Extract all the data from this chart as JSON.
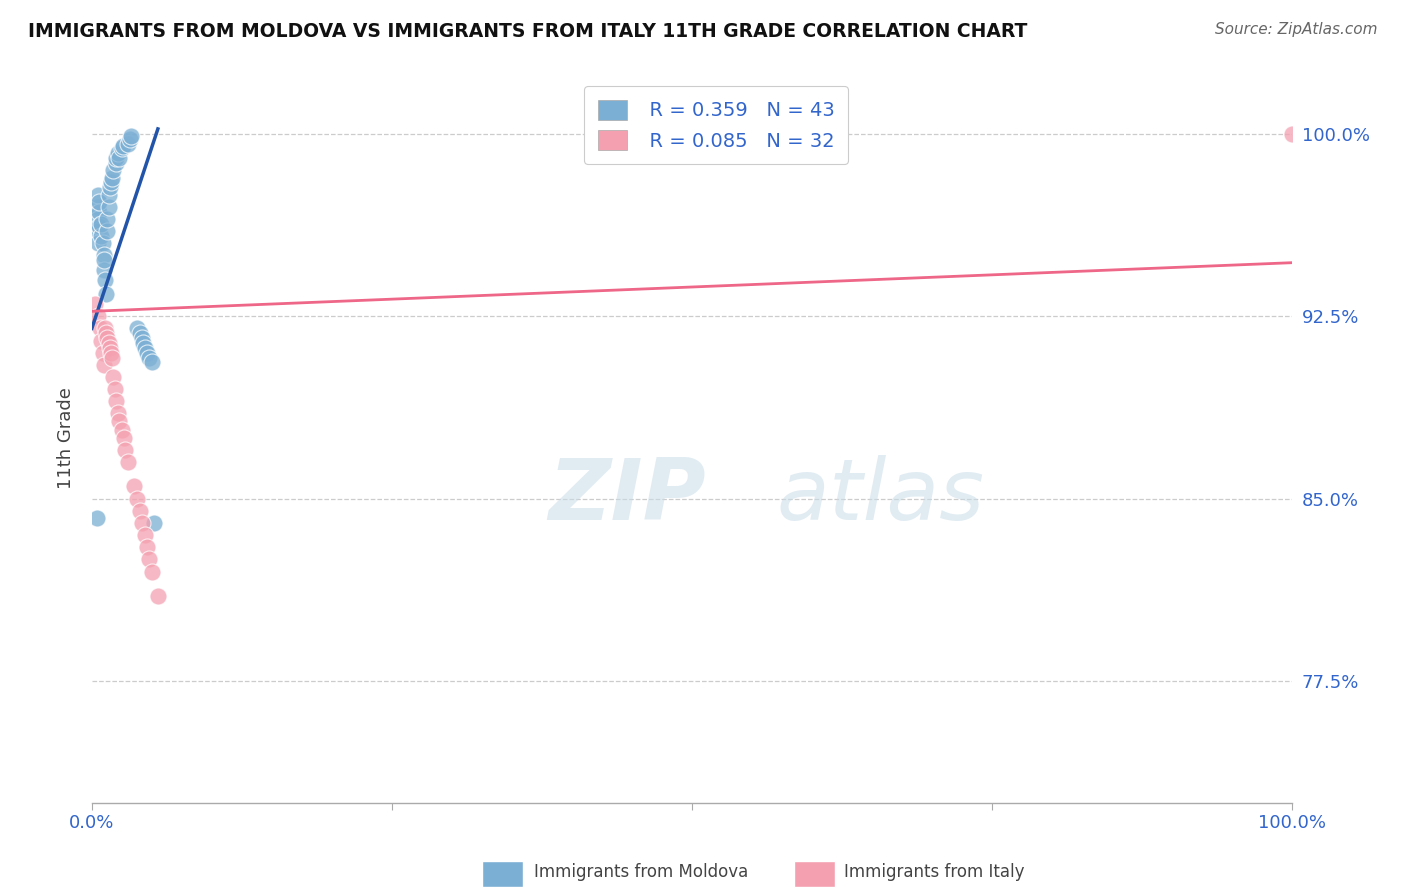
{
  "title": "IMMIGRANTS FROM MOLDOVA VS IMMIGRANTS FROM ITALY 11TH GRADE CORRELATION CHART",
  "source": "Source: ZipAtlas.com",
  "ylabel": "11th Grade",
  "xlim": [
    0.0,
    1.0
  ],
  "ylim": [
    0.725,
    1.025
  ],
  "yticks": [
    0.775,
    0.85,
    0.925,
    1.0
  ],
  "ytick_labels": [
    "77.5%",
    "85.0%",
    "92.5%",
    "100.0%"
  ],
  "xticks": [
    0.0,
    0.25,
    0.5,
    0.75,
    1.0
  ],
  "xtick_labels": [
    "0.0%",
    "",
    "",
    "",
    "100.0%"
  ],
  "blue_color": "#7BAFD4",
  "pink_color": "#F4A0B0",
  "blue_line_color": "#2255AA",
  "pink_line_color": "#EE6688",
  "legend_R_blue": "R = 0.359",
  "legend_N_blue": "N = 43",
  "legend_R_pink": "R = 0.085",
  "legend_N_pink": "N = 32",
  "watermark": "ZIPatlas",
  "blue_x": [
    0.005,
    0.005,
    0.005,
    0.005,
    0.005,
    0.006,
    0.006,
    0.006,
    0.008,
    0.008,
    0.009,
    0.01,
    0.01,
    0.01,
    0.011,
    0.012,
    0.013,
    0.013,
    0.014,
    0.014,
    0.015,
    0.016,
    0.017,
    0.018,
    0.02,
    0.02,
    0.022,
    0.023,
    0.025,
    0.026,
    0.03,
    0.032,
    0.033,
    0.038,
    0.04,
    0.042,
    0.043,
    0.044,
    0.046,
    0.048,
    0.05,
    0.052,
    0.004
  ],
  "blue_y": [
    0.97,
    0.965,
    0.96,
    0.955,
    0.975,
    0.968,
    0.962,
    0.972,
    0.958,
    0.963,
    0.955,
    0.95,
    0.944,
    0.948,
    0.94,
    0.934,
    0.96,
    0.965,
    0.97,
    0.975,
    0.978,
    0.98,
    0.982,
    0.985,
    0.988,
    0.99,
    0.992,
    0.99,
    0.994,
    0.995,
    0.996,
    0.998,
    0.999,
    0.92,
    0.918,
    0.916,
    0.914,
    0.912,
    0.91,
    0.908,
    0.906,
    0.84,
    0.842
  ],
  "pink_x": [
    0.003,
    0.005,
    0.007,
    0.008,
    0.009,
    0.01,
    0.011,
    0.012,
    0.013,
    0.014,
    0.015,
    0.016,
    0.017,
    0.018,
    0.019,
    0.02,
    0.022,
    0.023,
    0.025,
    0.027,
    0.028,
    0.03,
    0.035,
    0.038,
    0.04,
    0.042,
    0.044,
    0.046,
    0.048,
    0.05,
    0.055,
    1.0
  ],
  "pink_y": [
    0.93,
    0.925,
    0.92,
    0.915,
    0.91,
    0.905,
    0.92,
    0.918,
    0.916,
    0.914,
    0.912,
    0.91,
    0.908,
    0.9,
    0.895,
    0.89,
    0.885,
    0.882,
    0.878,
    0.875,
    0.87,
    0.865,
    0.855,
    0.85,
    0.845,
    0.84,
    0.835,
    0.83,
    0.825,
    0.82,
    0.81,
    1.0
  ],
  "blue_trend_x": [
    0.0,
    0.055
  ],
  "blue_trend_y": [
    0.92,
    1.002
  ],
  "pink_trend_x": [
    0.0,
    1.0
  ],
  "pink_trend_y": [
    0.927,
    0.947
  ]
}
